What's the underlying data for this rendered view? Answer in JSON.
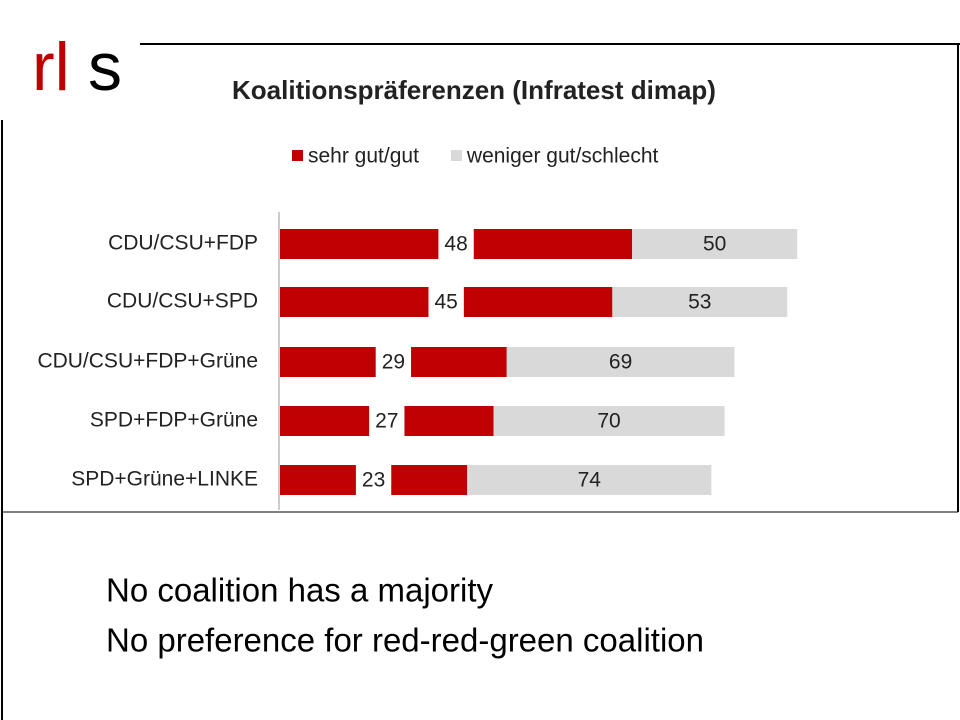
{
  "logo": [
    "rl",
    "s"
  ],
  "notes": [
    "No coalition has a majority",
    "No preference for red-red-green coalition"
  ],
  "chart_data": {
    "type": "bar",
    "title": "Koalitionspräferenzen (Infratest dimap)",
    "categories": [
      "CDU/CSU+FDP",
      "CDU/CSU+SPD",
      "CDU/CSU+FDP+Grüne",
      "SPD+FDP+Grüne",
      "SPD+Grüne+LINKE"
    ],
    "series": [
      {
        "name": "sehr gut/gut",
        "color": "#c00000",
        "values": [
          48,
          45,
          29,
          27,
          23
        ]
      },
      {
        "name": "weniger gut/schlecht",
        "color": "#d9d9d9",
        "values": [
          50,
          53,
          69,
          70,
          74
        ]
      }
    ]
  }
}
